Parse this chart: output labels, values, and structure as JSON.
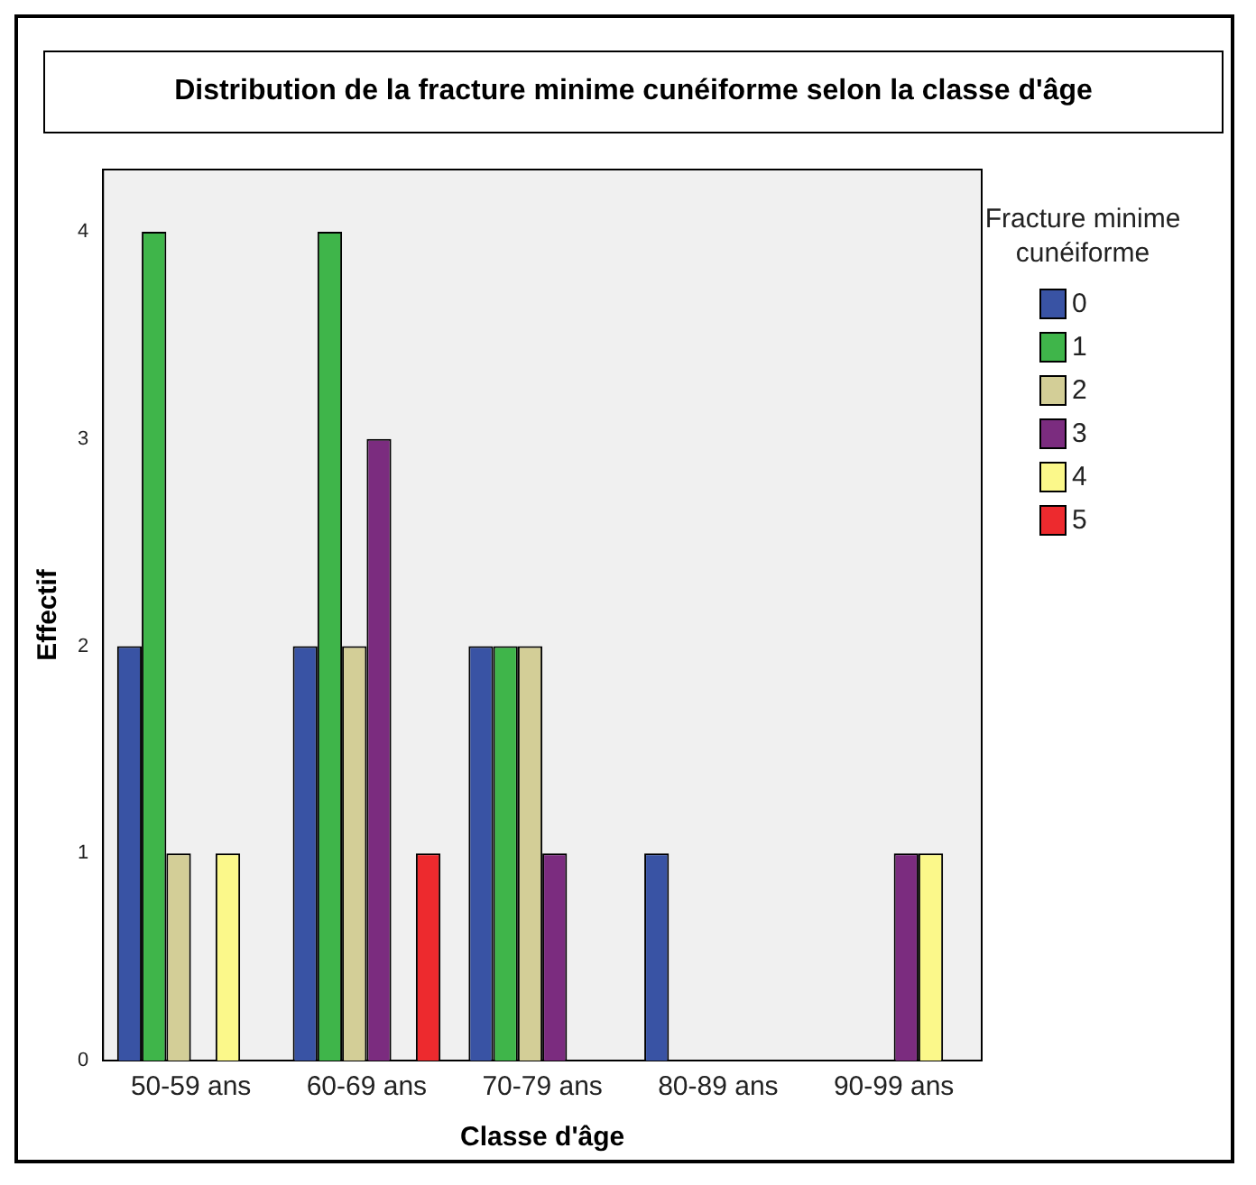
{
  "chart_data": {
    "type": "bar",
    "title": "Distribution de la fracture minime cunéiforme selon la classe d'âge",
    "xlabel": "Classe d'âge",
    "ylabel": "Effectif",
    "legend_title": "Fracture minime cunéiforme",
    "categories": [
      "50-59 ans",
      "60-69 ans",
      "70-79 ans",
      "80-89 ans",
      "90-99 ans"
    ],
    "series": [
      {
        "name": "0",
        "color": "#3953a4",
        "values": [
          2,
          2,
          2,
          1,
          0
        ]
      },
      {
        "name": "1",
        "color": "#3fb54a",
        "values": [
          4,
          4,
          2,
          0,
          0
        ]
      },
      {
        "name": "2",
        "color": "#d3ce97",
        "values": [
          1,
          2,
          2,
          0,
          0
        ]
      },
      {
        "name": "3",
        "color": "#7b2c7f",
        "values": [
          0,
          3,
          1,
          0,
          1
        ]
      },
      {
        "name": "4",
        "color": "#fbf88a",
        "values": [
          1,
          0,
          0,
          0,
          1
        ]
      },
      {
        "name": "5",
        "color": "#ed2a2e",
        "values": [
          0,
          1,
          0,
          0,
          0
        ]
      }
    ],
    "ylim": [
      0,
      4.3
    ],
    "yticks": [
      0,
      1,
      2,
      3,
      4
    ],
    "grid": false,
    "legend": "right"
  }
}
